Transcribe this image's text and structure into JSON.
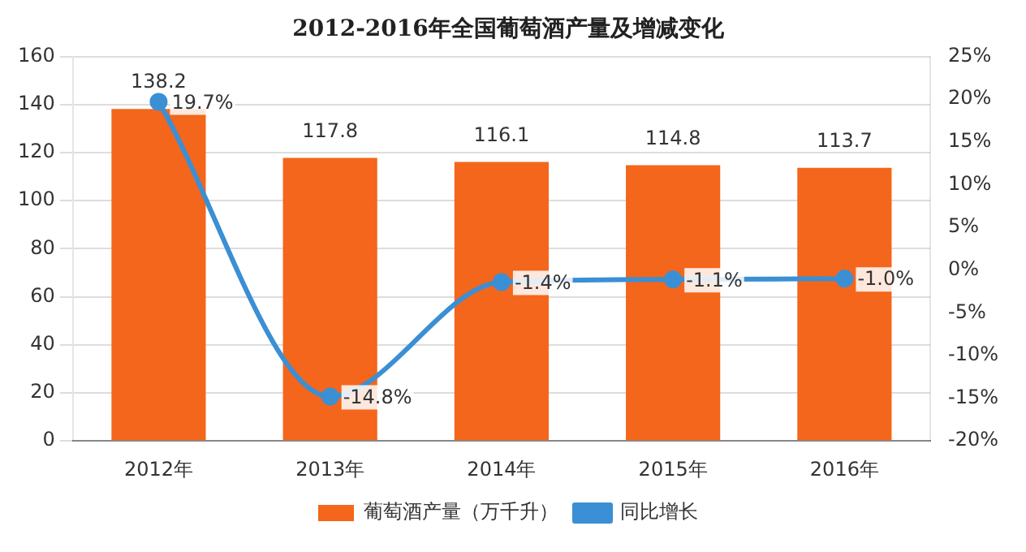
{
  "chart_data": {
    "type": "bar",
    "title": "2012-2016年全国葡萄酒产量及增减变化",
    "categories": [
      "2012年",
      "2013年",
      "2014年",
      "2015年",
      "2016年"
    ],
    "series": [
      {
        "name": "葡萄酒产量（万千升）",
        "color": "#f4661b",
        "values": [
          138.2,
          117.8,
          116.1,
          114.8,
          113.7
        ],
        "value_labels": [
          "138.2",
          "117.8",
          "116.1",
          "114.8",
          "113.7"
        ]
      },
      {
        "name": "同比增长",
        "type": "line",
        "axis": "y2",
        "color": "#3b8fd4",
        "marker": "circle",
        "values": [
          19.7,
          -14.8,
          -1.4,
          -1.1,
          -1.0
        ],
        "value_labels": [
          "19.7%",
          "-14.8%",
          "-1.4%",
          "-1.1%",
          "-1.0%"
        ]
      }
    ],
    "ylim": [
      0,
      160
    ],
    "yticks": [
      0,
      20,
      40,
      60,
      80,
      100,
      120,
      140,
      160
    ],
    "y2lim": [
      -20,
      25
    ],
    "y2ticks": [
      {
        "value": -20,
        "label": "-20%"
      },
      {
        "value": -15,
        "label": "-15%"
      },
      {
        "value": -10,
        "label": "-10%"
      },
      {
        "value": -5,
        "label": "-5%"
      },
      {
        "value": 0,
        "label": "0%"
      },
      {
        "value": 5,
        "label": "5%"
      },
      {
        "value": 10,
        "label": "10%"
      },
      {
        "value": 15,
        "label": "15%"
      },
      {
        "value": 20,
        "label": "20%"
      },
      {
        "value": 25,
        "label": "25%"
      }
    ],
    "grid": "y",
    "legend": "bottom"
  }
}
